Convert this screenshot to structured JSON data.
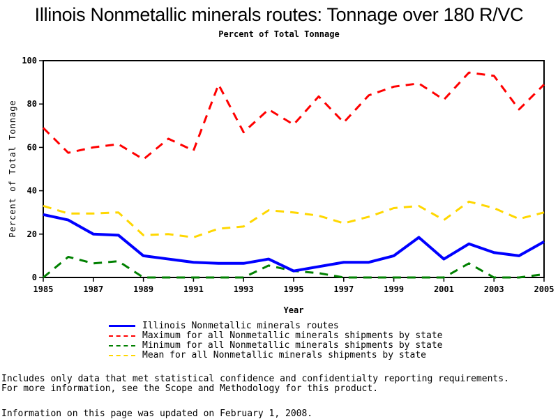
{
  "chart_data": {
    "type": "line",
    "title": "Illinois Nonmetallic minerals routes: Tonnage over 180 R/VC",
    "subtitle": "Percent of Total Tonnage",
    "xlabel": "Year",
    "ylabel": "Percent of Total Tonnage",
    "xlim": [
      1985,
      2005
    ],
    "ylim": [
      0,
      100
    ],
    "xticks": [
      "1985",
      "1987",
      "1989",
      "1991",
      "1993",
      "1995",
      "1997",
      "1999",
      "2001",
      "2003",
      "2005"
    ],
    "yticks": [
      "0",
      "20",
      "40",
      "60",
      "80",
      "100"
    ],
    "x": [
      1985,
      1986,
      1987,
      1988,
      1989,
      1990,
      1991,
      1992,
      1993,
      1994,
      1995,
      1996,
      1997,
      1998,
      1999,
      2000,
      2001,
      2002,
      2003,
      2004,
      2005
    ],
    "series": [
      {
        "name": "Illinois Nonmetallic minerals routes",
        "color": "#0000ff",
        "style": "solid",
        "values": [
          29,
          26.5,
          20,
          19.5,
          10,
          8.5,
          7,
          6.5,
          6.5,
          8.5,
          3,
          5,
          7,
          7,
          10,
          18.5,
          8.5,
          15.5,
          11.5,
          10,
          16.5
        ]
      },
      {
        "name": "Maximum for all Nonmetallic minerals shipments by state",
        "color": "#ff0000",
        "style": "dashed",
        "values": [
          69,
          57.5,
          60,
          61.5,
          54.5,
          64,
          58.5,
          89,
          67,
          77.5,
          70.5,
          83.5,
          71.5,
          84,
          88,
          89.5,
          82,
          94.5,
          93,
          77.5,
          89
        ]
      },
      {
        "name": "Minimum for all Nonmetallic minerals shipments by state",
        "color": "#008000",
        "style": "dashed",
        "values": [
          0,
          9.5,
          6.5,
          7.5,
          0,
          0,
          0,
          0,
          0,
          5.5,
          3,
          2,
          0,
          0,
          0,
          0,
          0,
          6.5,
          0,
          0,
          1.5
        ]
      },
      {
        "name": "Mean for all Nonmetallic minerals shipments by state",
        "color": "#ffd700",
        "style": "dashed",
        "values": [
          33,
          29.5,
          29.5,
          30,
          19.5,
          20,
          18.5,
          22.5,
          23.5,
          31,
          30,
          28.5,
          25,
          28,
          32,
          33,
          26.5,
          35,
          32,
          27,
          30
        ]
      }
    ],
    "legend_position": "bottom"
  },
  "notes": {
    "line1": "Includes only data that met statistical confidence and confidentialty reporting requirements.",
    "line2": "For more information, see the Scope and Methodology for this product.",
    "updated": "Information on this page was updated on February 1, 2008."
  }
}
